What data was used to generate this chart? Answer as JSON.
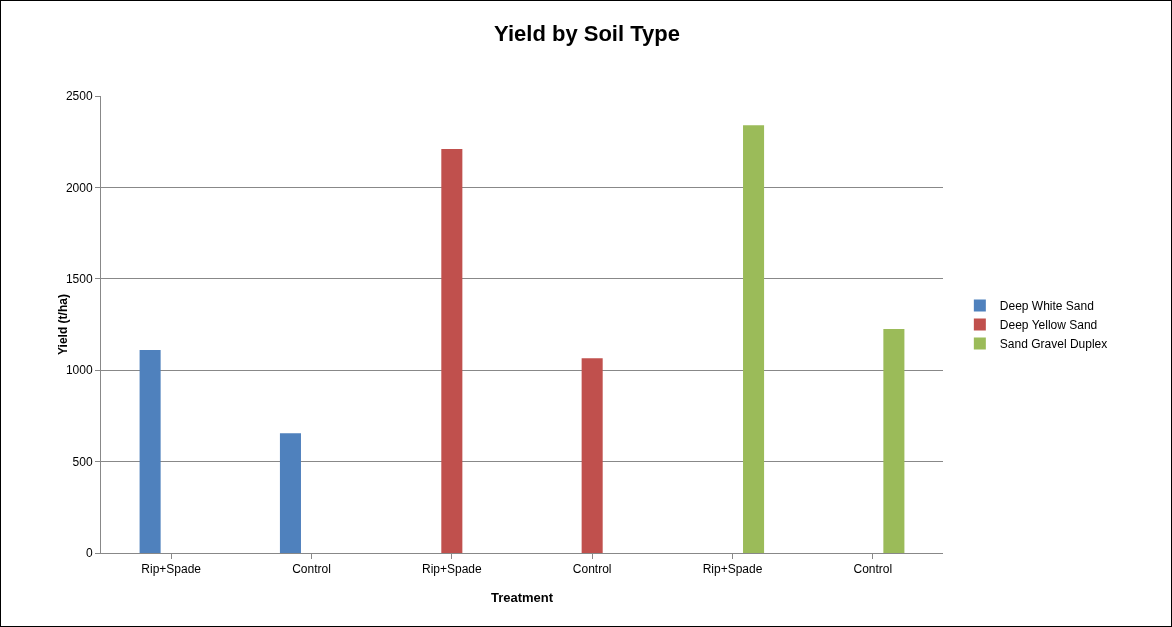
{
  "chart_data": {
    "type": "bar",
    "title": "Yield by Soil Type",
    "xlabel": "Treatment",
    "ylabel": "Yield (t/ha)",
    "categories": [
      "Rip+Spade",
      "Control",
      "Rip+Spade",
      "Control",
      "Rip+Spade",
      "Control"
    ],
    "series": [
      {
        "name": "Deep White Sand",
        "color": "#4f81bd",
        "values": [
          1110,
          655,
          null,
          null,
          null,
          null
        ]
      },
      {
        "name": "Deep Yellow Sand",
        "color": "#c0504d",
        "values": [
          null,
          null,
          2210,
          1065,
          null,
          null
        ]
      },
      {
        "name": "Sand Gravel Duplex",
        "color": "#9bbb59",
        "values": [
          null,
          null,
          null,
          null,
          2340,
          1225
        ]
      }
    ],
    "ylim": [
      0,
      2500
    ],
    "yticks": [
      0,
      500,
      1000,
      1500,
      2000,
      2500
    ],
    "grid": "y",
    "legend": "right"
  }
}
